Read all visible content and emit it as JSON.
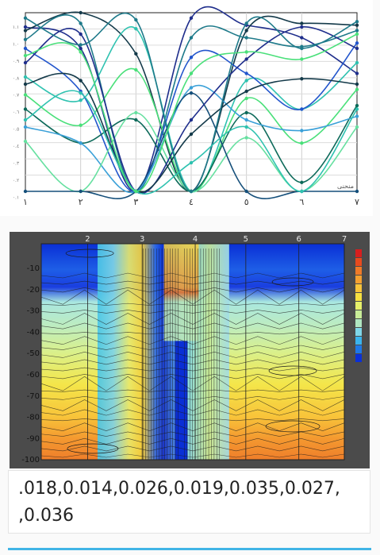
{
  "line_chart": {
    "x_tick_labels": [
      "١",
      "٢",
      "٣",
      "٤",
      "٥",
      "٦",
      "٧"
    ],
    "y_tick_labels": [
      "١.١",
      "١.٠",
      "٠.٩",
      "٠.٨",
      "٠.٧",
      "٠.٦",
      "٠.٥",
      "٠.٤",
      "٠.٣",
      "٠.٢",
      "٠.١"
    ],
    "corner_label": "منحنى",
    "colors": [
      "#1f2e8c",
      "#143a4a",
      "#1e7a8a",
      "#2fc2b0",
      "#4ae07a",
      "#2255cc",
      "#0d6a5a",
      "#3aa0d8",
      "#66e0a0",
      "#154f7a"
    ]
  },
  "heatmap": {
    "x_tick_labels": [
      "2",
      "3",
      "4",
      "5",
      "6",
      "7"
    ],
    "y_tick_labels": [
      "-10",
      "-20",
      "-30",
      "-40",
      "-50",
      "-60",
      "-70",
      "-80",
      "-90",
      "-100"
    ],
    "legend_colors": [
      "#d81e1e",
      "#e84a1e",
      "#f07a28",
      "#f5a030",
      "#f8c43a",
      "#f7e040",
      "#e6f06a",
      "#c8ec98",
      "#b0e6c0",
      "#7fd6e8",
      "#3ab4ee",
      "#1e78e8",
      "#0a30d8"
    ]
  },
  "caption": {
    "line1": ".018,0.014,0.026,0.019,0.035,0.027,",
    "line2": ",0.036"
  }
}
